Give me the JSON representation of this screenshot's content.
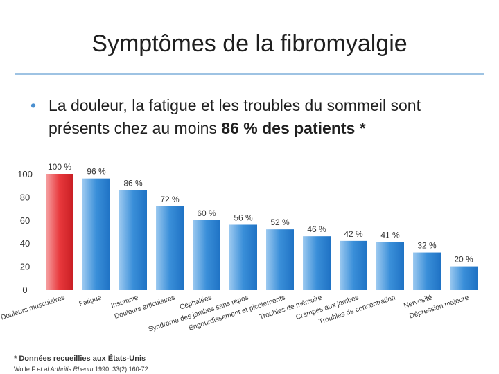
{
  "title": "Symptômes de la fibromyalgie",
  "bullet": {
    "marker": "•",
    "text": "La douleur, la fatigue et les troubles du sommeil sont présents chez au moins ",
    "bold": "86 % des patients *"
  },
  "footnote": "* Données recueillies aux États-Unis",
  "reference": {
    "prefix": "Wolfe F ",
    "italic": "et al Arthritis Rheum",
    "suffix": " 1990; 33(2):160-72."
  },
  "chart_data": {
    "type": "bar",
    "ylim": [
      0,
      100
    ],
    "yticks": [
      "0",
      "20",
      "40",
      "60",
      "80",
      "100"
    ],
    "categories": [
      "Douleurs musculaires",
      "Fatigue",
      "Insomnie",
      "Douleurs articulaires",
      "Céphalées",
      "Syndrome des jambes sans repos",
      "Engourdissement et picotements",
      "Troubles de mémoire",
      "Crampes aux jambes",
      "Troubles de concentration",
      "Nervosité",
      "Dépression majeure"
    ],
    "values": [
      100,
      96,
      86,
      72,
      60,
      56,
      52,
      46,
      42,
      41,
      32,
      20
    ],
    "value_labels": [
      "100 %",
      "96 %",
      "86 %",
      "72 %",
      "60 %",
      "56 %",
      "52 %",
      "46 %",
      "42 %",
      "41 %",
      "32 %",
      "20 %"
    ],
    "highlight_color": "#e8383c",
    "bar_color": "#3a8fd9"
  }
}
